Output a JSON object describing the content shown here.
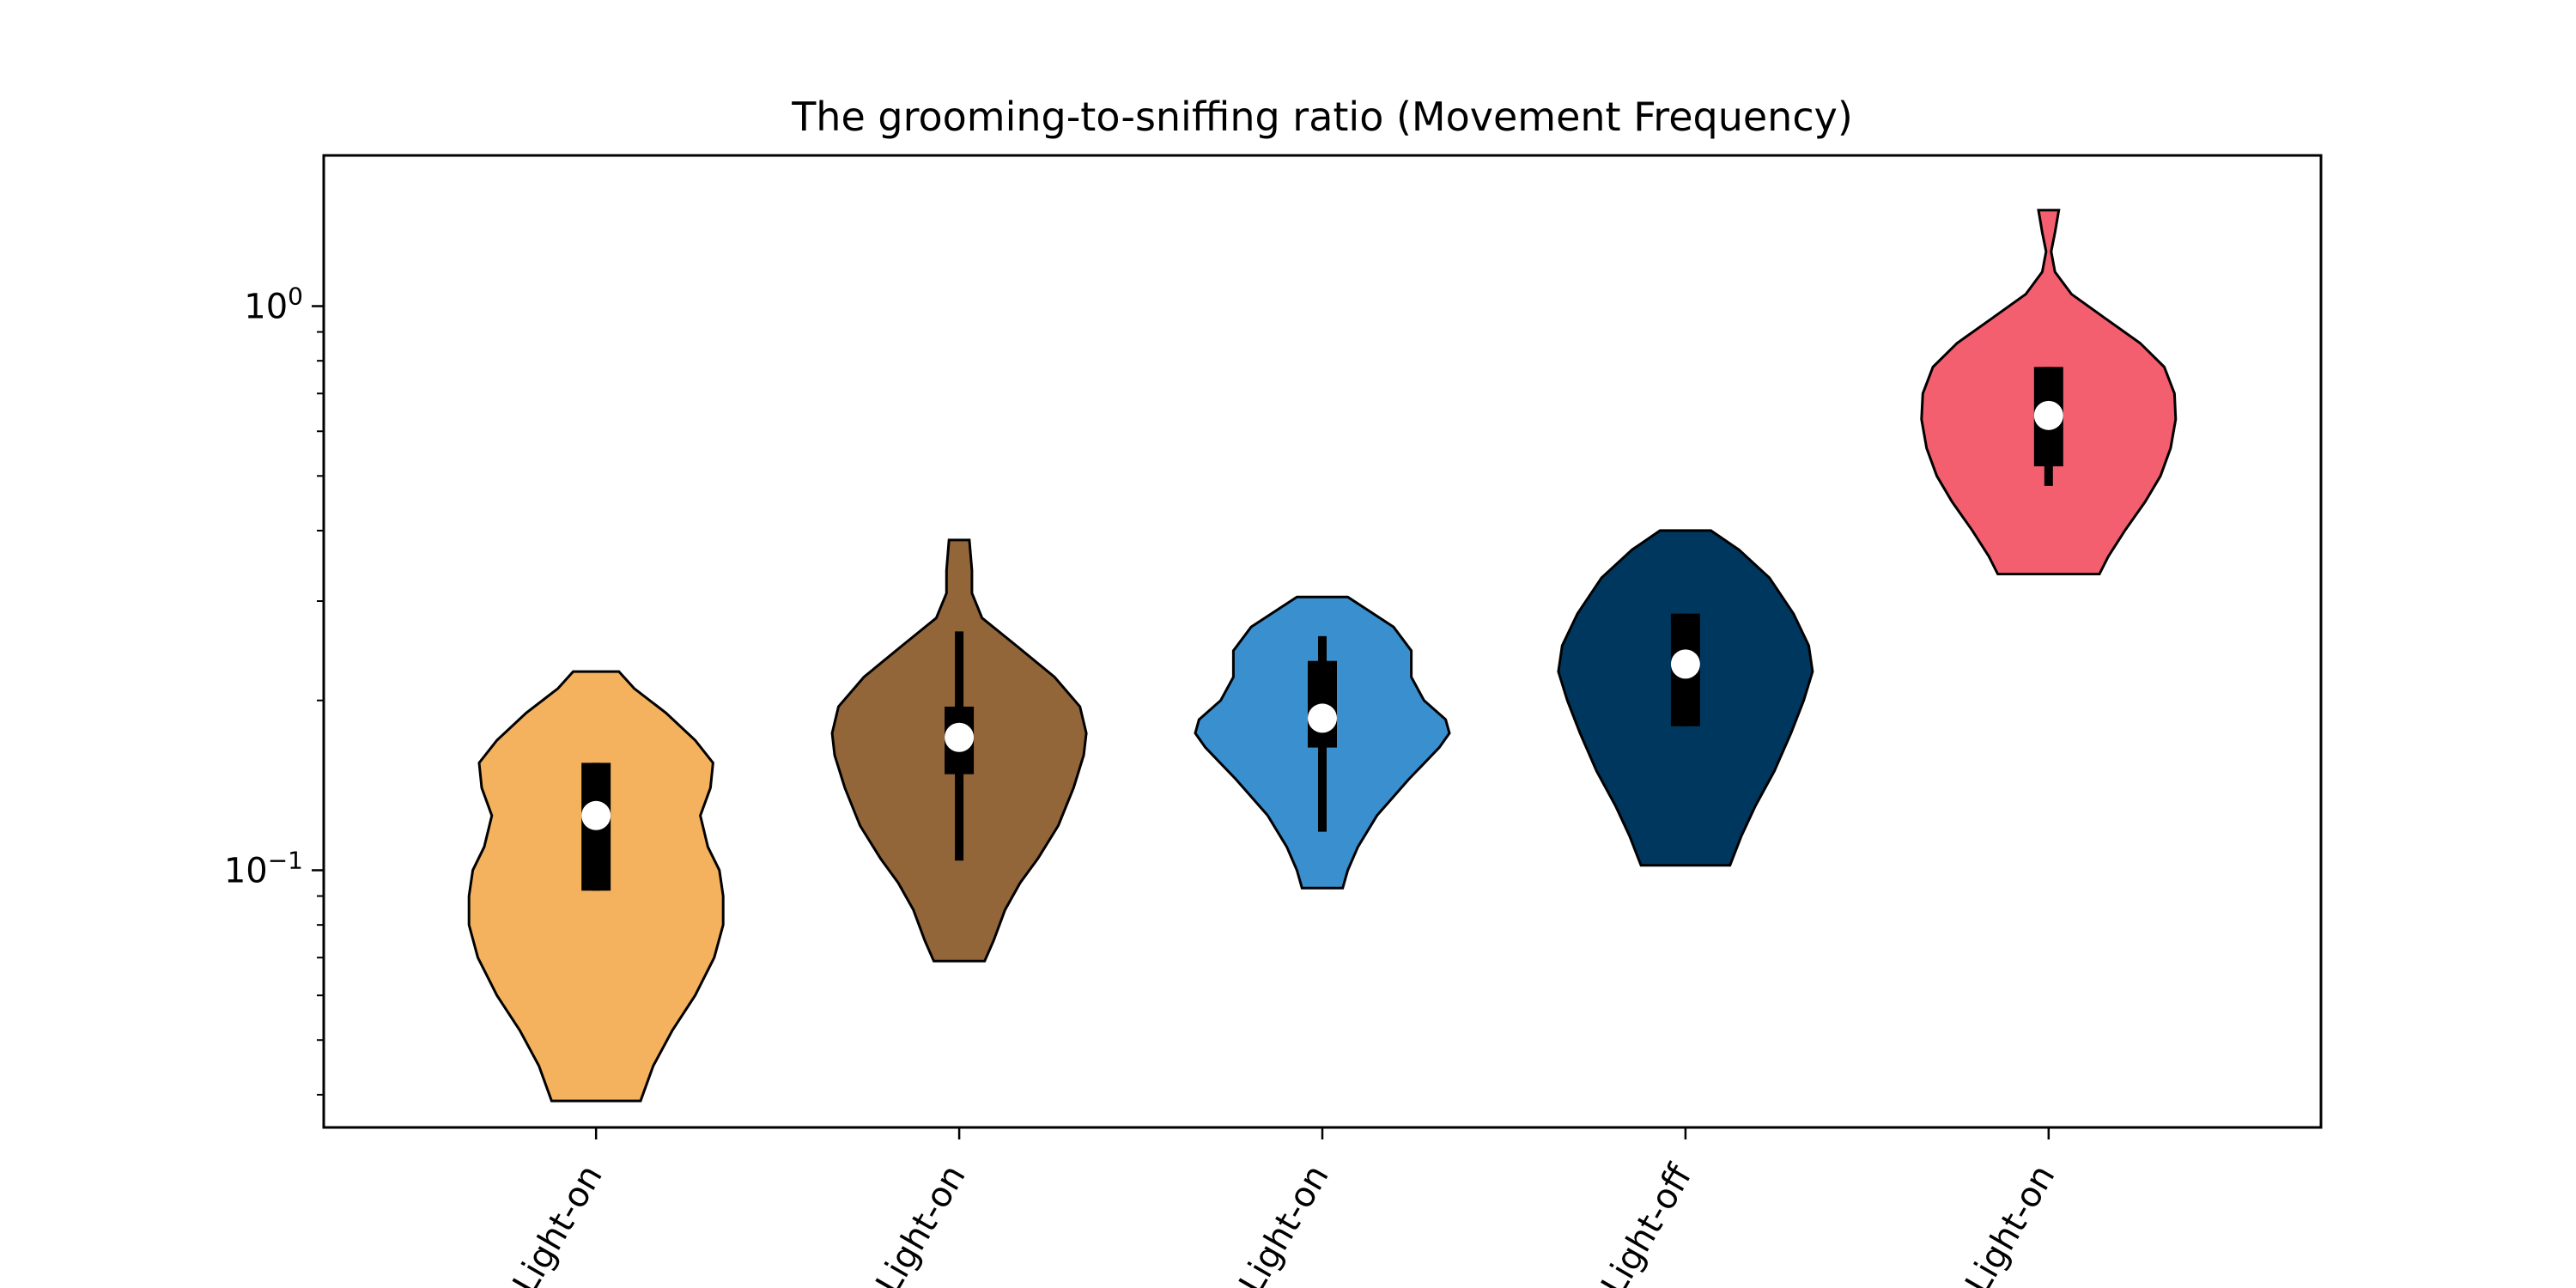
{
  "chart_data": {
    "type": "violin",
    "title": "The grooming-to-sniffing ratio (Movement Frequency)",
    "xlabel": "",
    "ylabel": "",
    "y_scale": "log",
    "ylim": [
      0.035,
      1.85
    ],
    "y_ticks": [
      {
        "value": 1,
        "base": "10",
        "exp": "0"
      },
      {
        "value": 0.1,
        "base": "10",
        "exp": "−1"
      }
    ],
    "categories": [
      "Light-on",
      "Light-on",
      "Light-on",
      "Light-off",
      "Light-on"
    ],
    "grid": false,
    "series": [
      {
        "color": "#F4B25E",
        "min": 0.039,
        "max": 0.225,
        "q1": 0.092,
        "median": 0.125,
        "q3": 0.155,
        "whisker_low": 0.092,
        "whisker_high": 0.155,
        "profile": [
          [
            0.039,
            0.35
          ],
          [
            0.045,
            0.45
          ],
          [
            0.052,
            0.6
          ],
          [
            0.06,
            0.78
          ],
          [
            0.07,
            0.93
          ],
          [
            0.08,
            1.0
          ],
          [
            0.09,
            1.0
          ],
          [
            0.1,
            0.97
          ],
          [
            0.11,
            0.88
          ],
          [
            0.125,
            0.82
          ],
          [
            0.14,
            0.9
          ],
          [
            0.155,
            0.92
          ],
          [
            0.17,
            0.78
          ],
          [
            0.19,
            0.55
          ],
          [
            0.21,
            0.3
          ],
          [
            0.225,
            0.18
          ]
        ]
      },
      {
        "color": "#936639",
        "min": 0.069,
        "max": 0.385,
        "q1": 0.148,
        "median": 0.172,
        "q3": 0.195,
        "whisker_low": 0.104,
        "whisker_high": 0.265,
        "profile": [
          [
            0.069,
            0.2
          ],
          [
            0.075,
            0.27
          ],
          [
            0.085,
            0.36
          ],
          [
            0.095,
            0.48
          ],
          [
            0.105,
            0.62
          ],
          [
            0.12,
            0.78
          ],
          [
            0.14,
            0.9
          ],
          [
            0.16,
            0.98
          ],
          [
            0.175,
            1.0
          ],
          [
            0.195,
            0.95
          ],
          [
            0.22,
            0.75
          ],
          [
            0.25,
            0.45
          ],
          [
            0.28,
            0.18
          ],
          [
            0.31,
            0.1
          ],
          [
            0.34,
            0.1
          ],
          [
            0.385,
            0.08
          ]
        ]
      },
      {
        "color": "#3A8FCF",
        "min": 0.093,
        "max": 0.305,
        "q1": 0.165,
        "median": 0.186,
        "q3": 0.235,
        "whisker_low": 0.117,
        "whisker_high": 0.26,
        "profile": [
          [
            0.093,
            0.16
          ],
          [
            0.1,
            0.2
          ],
          [
            0.11,
            0.28
          ],
          [
            0.125,
            0.43
          ],
          [
            0.145,
            0.68
          ],
          [
            0.165,
            0.92
          ],
          [
            0.175,
            1.0
          ],
          [
            0.185,
            0.97
          ],
          [
            0.2,
            0.8
          ],
          [
            0.22,
            0.7
          ],
          [
            0.245,
            0.7
          ],
          [
            0.27,
            0.56
          ],
          [
            0.29,
            0.35
          ],
          [
            0.305,
            0.2
          ]
        ]
      },
      {
        "color": "#00375F",
        "min": 0.102,
        "max": 0.4,
        "q1": 0.18,
        "median": 0.232,
        "q3": 0.285,
        "whisker_low": 0.18,
        "whisker_high": 0.285,
        "profile": [
          [
            0.102,
            0.35
          ],
          [
            0.115,
            0.44
          ],
          [
            0.13,
            0.55
          ],
          [
            0.15,
            0.7
          ],
          [
            0.175,
            0.83
          ],
          [
            0.2,
            0.93
          ],
          [
            0.225,
            1.0
          ],
          [
            0.25,
            0.97
          ],
          [
            0.285,
            0.85
          ],
          [
            0.33,
            0.66
          ],
          [
            0.37,
            0.42
          ],
          [
            0.4,
            0.2
          ]
        ]
      },
      {
        "color": "#F45F6F",
        "min": 0.335,
        "max": 1.48,
        "q1": 0.52,
        "median": 0.64,
        "q3": 0.78,
        "whisker_low": 0.48,
        "whisker_high": 0.78,
        "profile": [
          [
            0.335,
            0.4
          ],
          [
            0.36,
            0.47
          ],
          [
            0.4,
            0.6
          ],
          [
            0.45,
            0.76
          ],
          [
            0.5,
            0.88
          ],
          [
            0.56,
            0.96
          ],
          [
            0.63,
            1.0
          ],
          [
            0.7,
            0.99
          ],
          [
            0.78,
            0.91
          ],
          [
            0.86,
            0.72
          ],
          [
            0.95,
            0.45
          ],
          [
            1.05,
            0.18
          ],
          [
            1.15,
            0.05
          ],
          [
            1.25,
            0.02
          ],
          [
            1.35,
            0.05
          ],
          [
            1.48,
            0.08
          ]
        ]
      }
    ]
  }
}
